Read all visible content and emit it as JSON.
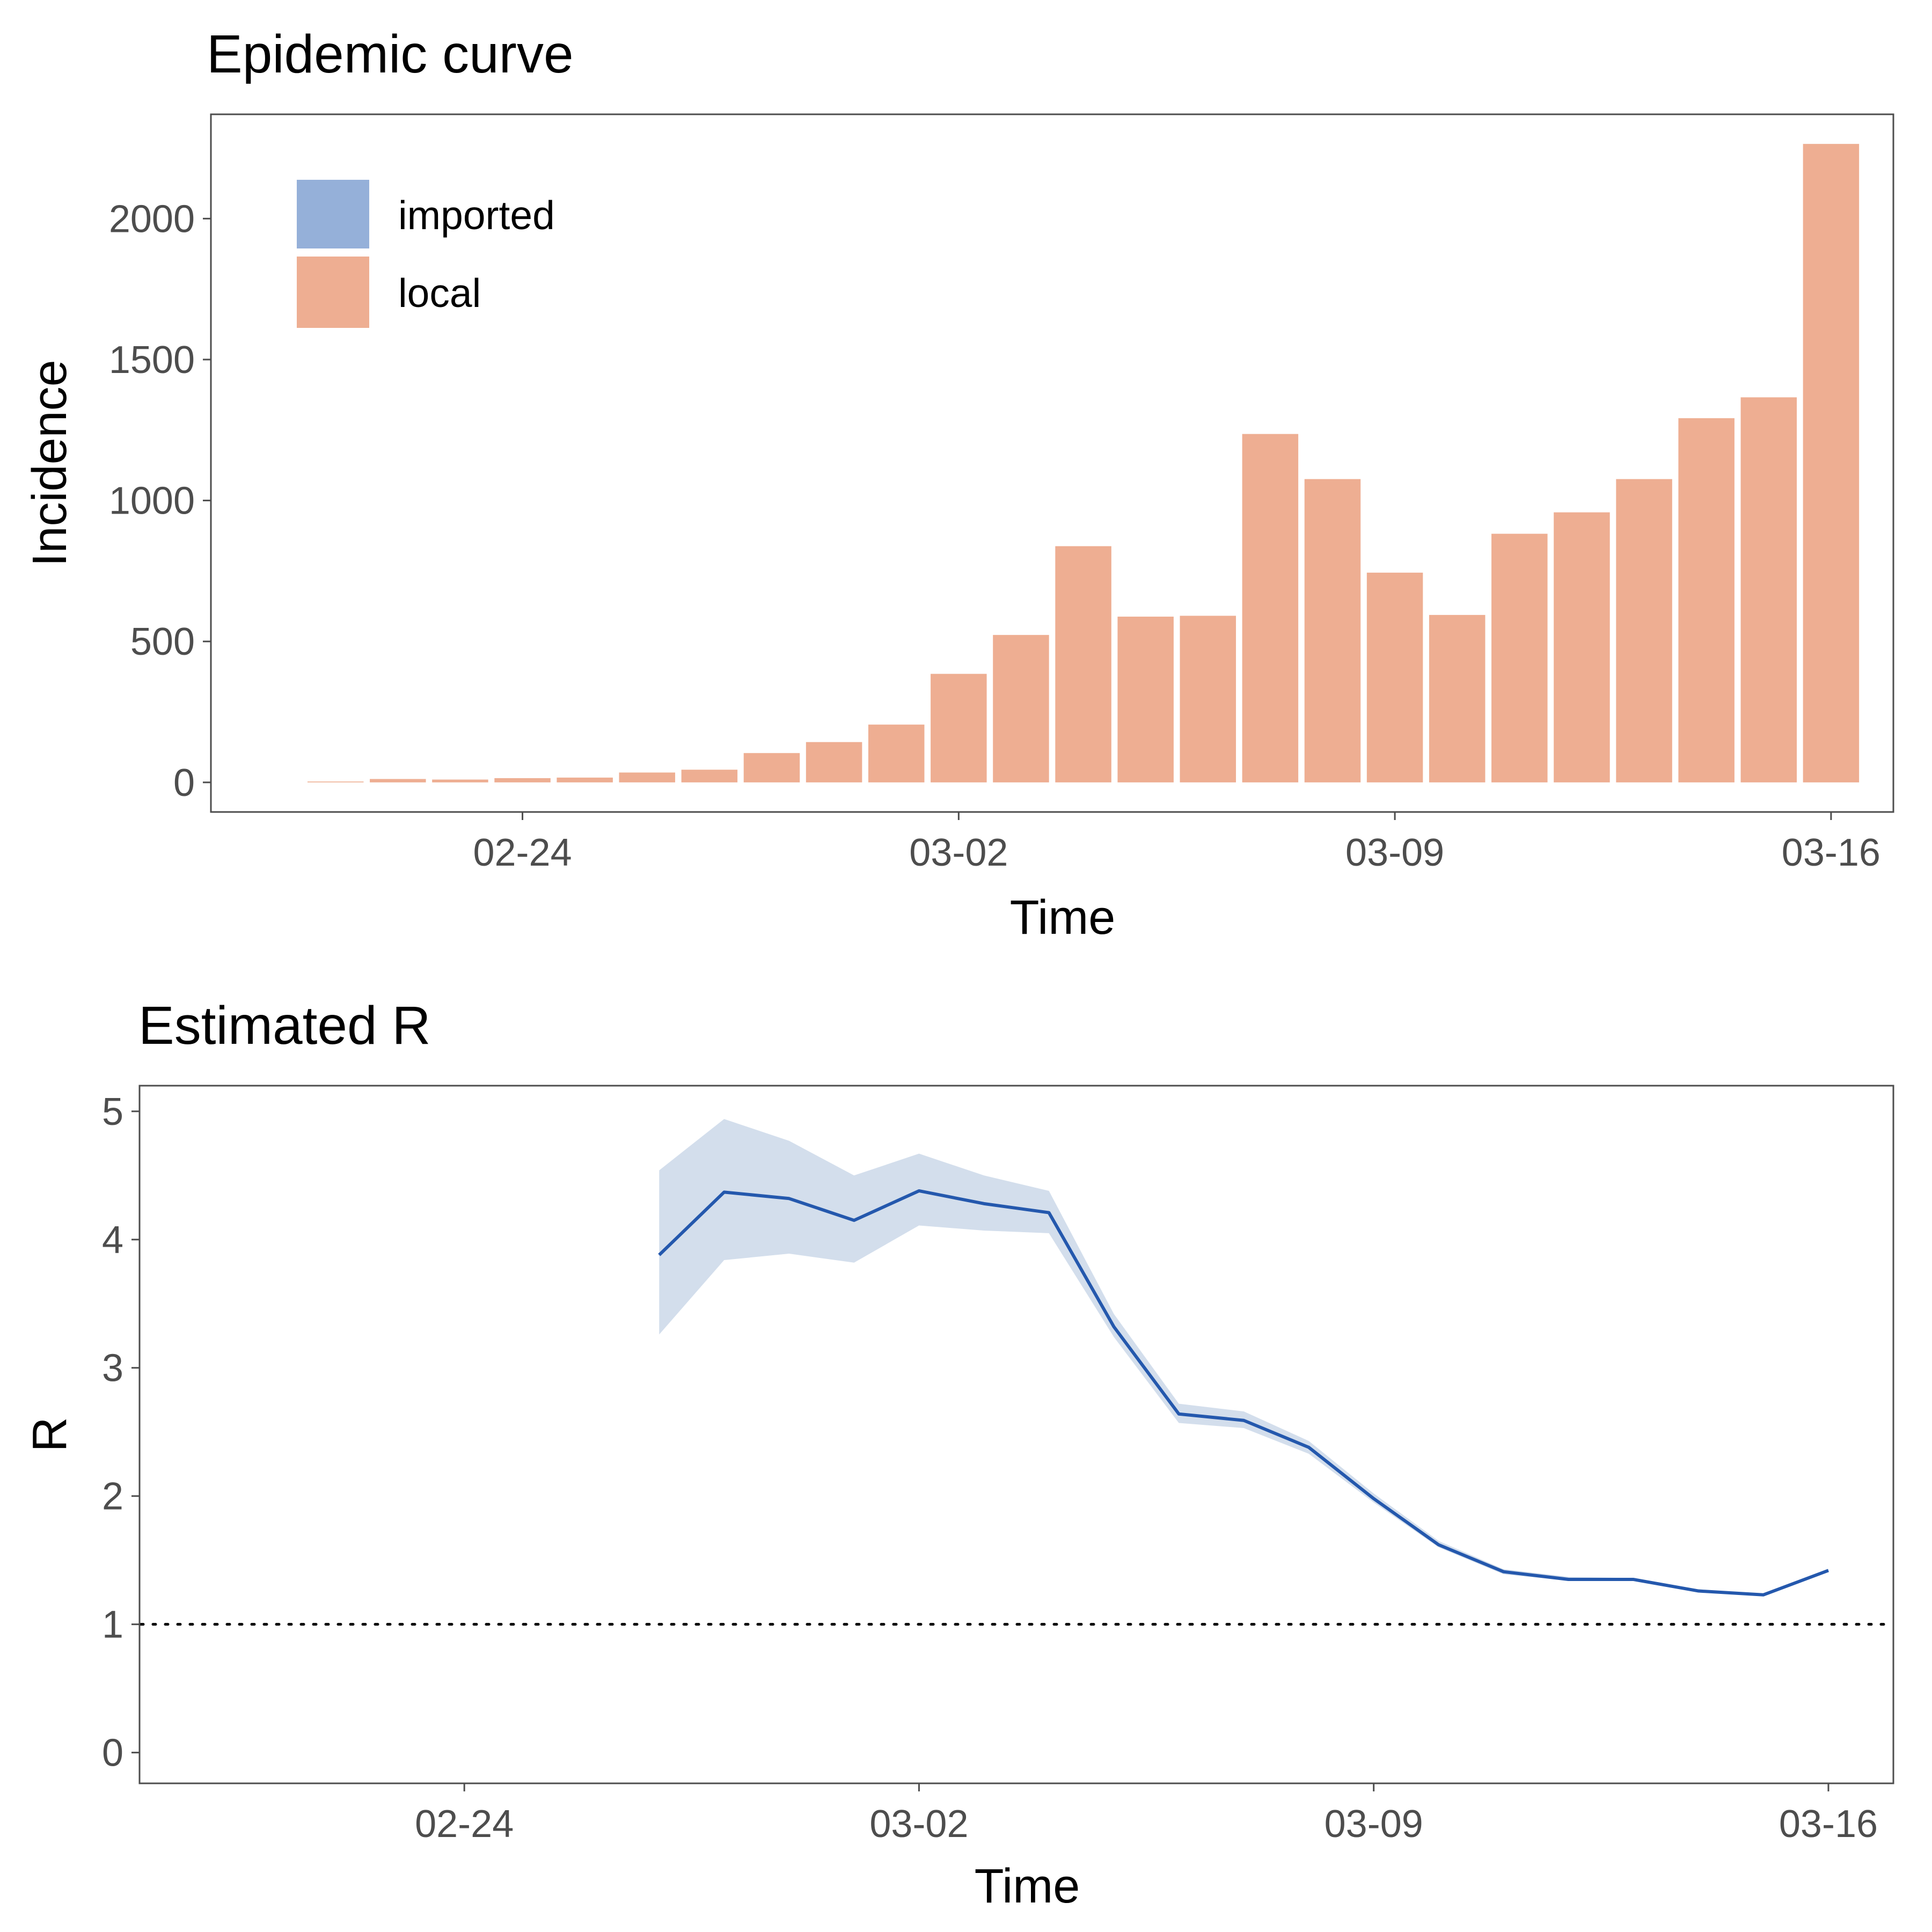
{
  "chart_data": [
    {
      "type": "bar",
      "title": "Epidemic curve",
      "xlabel": "Time",
      "ylabel": "Incidence",
      "stacked": true,
      "x_ticks": [
        "02-24",
        "03-02",
        "03-09",
        "03-16"
      ],
      "y_ticks": [
        "0",
        "500",
        "1000",
        "1500",
        "2000"
      ],
      "ylim": [
        -105,
        2370
      ],
      "xlim": [
        "2020-02-19",
        "2020-03-17"
      ],
      "grid": false,
      "legend_position": "top-left",
      "legend": [
        {
          "name": "imported",
          "color": "#95b0d9"
        },
        {
          "name": "local",
          "color": "#eeae92"
        }
      ],
      "x": [
        "2020-02-21",
        "2020-02-22",
        "2020-02-23",
        "2020-02-24",
        "2020-02-25",
        "2020-02-26",
        "2020-02-27",
        "2020-02-28",
        "2020-02-29",
        "2020-03-01",
        "2020-03-02",
        "2020-03-03",
        "2020-03-04",
        "2020-03-05",
        "2020-03-06",
        "2020-03-07",
        "2020-03-08",
        "2020-03-09",
        "2020-03-10",
        "2020-03-11",
        "2020-03-12",
        "2020-03-13",
        "2020-03-14",
        "2020-03-15",
        "2020-03-16"
      ],
      "series": [
        {
          "name": "imported",
          "values": [
            0,
            0,
            0,
            0,
            0,
            0,
            0,
            0,
            0,
            0,
            0,
            0,
            0,
            0,
            0,
            0,
            0,
            0,
            0,
            0,
            0,
            0,
            0,
            0,
            0
          ]
        },
        {
          "name": "local",
          "values": [
            3,
            12,
            10,
            15,
            17,
            35,
            45,
            104,
            143,
            205,
            385,
            523,
            838,
            588,
            591,
            1236,
            1076,
            744,
            594,
            882,
            958,
            1076,
            1292,
            1366,
            2265
          ]
        }
      ]
    },
    {
      "type": "line",
      "title": "Estimated R",
      "xlabel": "Time",
      "ylabel": "R",
      "x_ticks": [
        "02-24",
        "03-02",
        "03-09",
        "03-16"
      ],
      "y_ticks": [
        "0",
        "1",
        "2",
        "3",
        "4",
        "5"
      ],
      "ylim": [
        -0.24,
        5.2
      ],
      "xlim": [
        "2020-02-19",
        "2020-03-17"
      ],
      "grid": false,
      "reference_line": {
        "y": 1,
        "style": "dotted"
      },
      "line_color": "#2458ad",
      "band_color": "#d3deec",
      "x": [
        "2020-02-27",
        "2020-02-28",
        "2020-02-29",
        "2020-03-01",
        "2020-03-02",
        "2020-03-03",
        "2020-03-04",
        "2020-03-05",
        "2020-03-06",
        "2020-03-07",
        "2020-03-08",
        "2020-03-09",
        "2020-03-10",
        "2020-03-11",
        "2020-03-12",
        "2020-03-13",
        "2020-03-14",
        "2020-03-15",
        "2020-03-16"
      ],
      "series": [
        {
          "name": "mean",
          "values": [
            3.88,
            4.37,
            4.32,
            4.15,
            4.38,
            4.28,
            4.21,
            3.32,
            2.64,
            2.59,
            2.38,
            1.98,
            1.62,
            1.41,
            1.35,
            1.35,
            1.26,
            1.23,
            1.42
          ]
        },
        {
          "name": "lower",
          "values": [
            3.26,
            3.84,
            3.89,
            3.82,
            4.11,
            4.07,
            4.05,
            3.24,
            2.57,
            2.53,
            2.33,
            1.95,
            1.6,
            1.39,
            1.34,
            1.34,
            1.25,
            1.22,
            1.41
          ]
        },
        {
          "name": "upper",
          "values": [
            4.54,
            4.94,
            4.77,
            4.5,
            4.67,
            4.5,
            4.38,
            3.42,
            2.72,
            2.66,
            2.43,
            2.02,
            1.65,
            1.43,
            1.37,
            1.36,
            1.27,
            1.24,
            1.43
          ]
        }
      ]
    }
  ]
}
